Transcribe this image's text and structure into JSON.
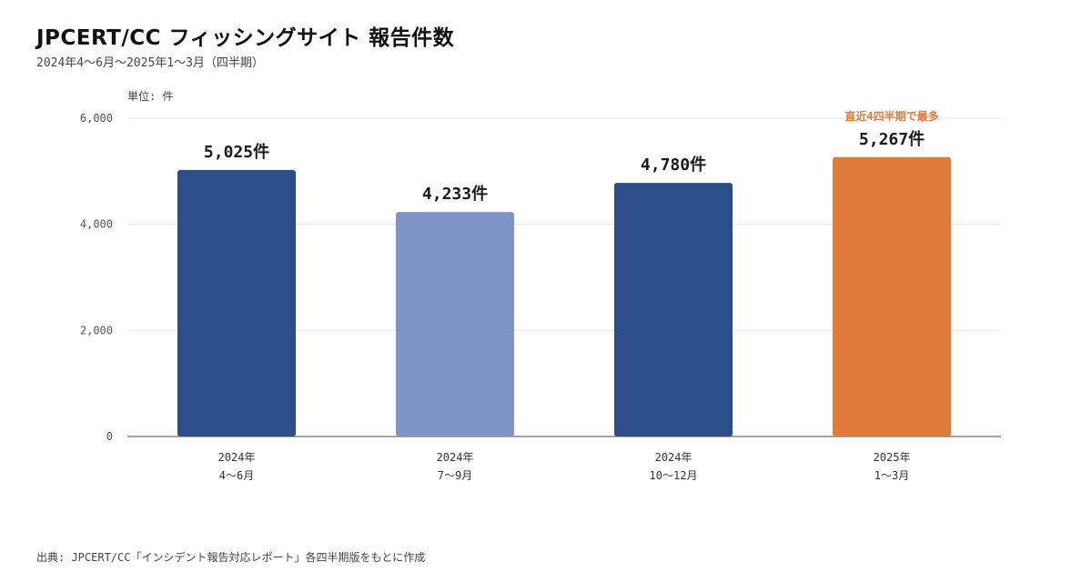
{
  "header": {
    "title": "JPCERT/CC フィッシングサイト 報告件数",
    "subtitle": "2024年4～6月～2025年1～3月（四半期）"
  },
  "footer": {
    "source": "出典: JPCERT/CC「インシデント報告対応レポート」各四半期版をもとに作成"
  },
  "colors": {
    "dark_blue": "#2c4f8c",
    "light_blue": "#7f95c5",
    "highlight": "#e07b39",
    "grid": "#e6e6ee",
    "axis": "#888888"
  },
  "chart_data": {
    "type": "bar",
    "title": "JPCERT/CC フィッシングサイト 報告件数",
    "subtitle": "2024年4～6月～2025年1～3月（四半期）",
    "unit_label": "単位: 件",
    "categories": [
      [
        "2024年",
        "4～6月"
      ],
      [
        "2024年",
        "7～9月"
      ],
      [
        "2024年",
        "10～12月"
      ],
      [
        "2025年",
        "1～3月"
      ]
    ],
    "values": [
      5025,
      4233,
      4780,
      5267
    ],
    "value_labels": [
      "5,025件",
      "4,233件",
      "4,780件",
      "5,267件"
    ],
    "bar_colors": [
      "#2c4f8c",
      "#7f95c5",
      "#2c4f8c",
      "#e07b39"
    ],
    "y_ticks": [
      "0",
      "2,000",
      "4,000",
      "6,000"
    ],
    "y_tick_values": [
      0,
      2000,
      4000,
      6000
    ],
    "ylim": [
      0,
      6000
    ],
    "grid": true,
    "annotation": {
      "text": "直近4四半期で最多",
      "category_index": 3,
      "color": "#e07b39"
    }
  }
}
